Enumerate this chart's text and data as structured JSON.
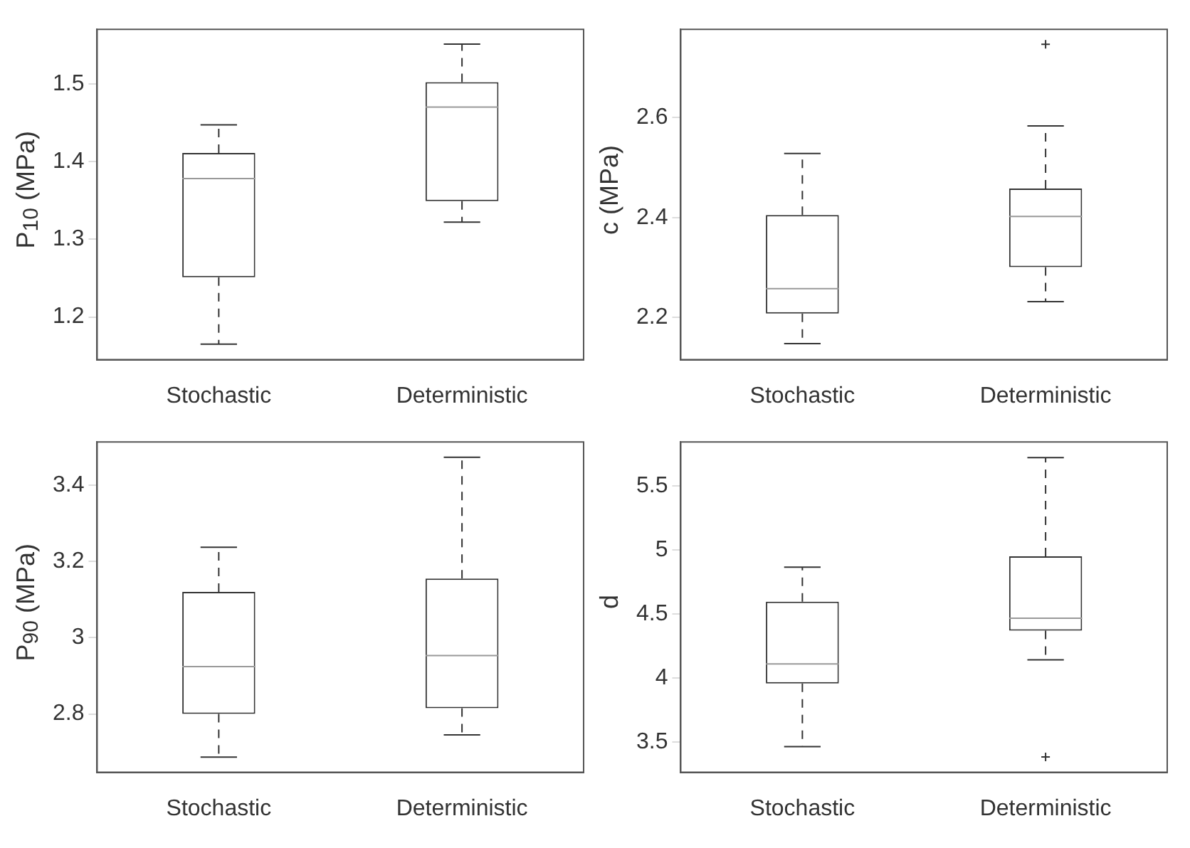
{
  "chart_data": [
    {
      "type": "box",
      "ylabel": "P$_{10}$ (MPa)",
      "categories": [
        "Stochastic",
        "Deterministic"
      ],
      "ylim": [
        1.145,
        1.57
      ],
      "yticks": [
        1.2,
        1.3,
        1.4,
        1.5
      ],
      "boxes": [
        {
          "low": 1.165,
          "q1": 1.251,
          "median": 1.378,
          "q3": 1.411,
          "high": 1.447
        },
        {
          "low": 1.322,
          "q1": 1.349,
          "median": 1.47,
          "q3": 1.502,
          "high": 1.551
        }
      ]
    },
    {
      "type": "box",
      "ylabel": "c (MPa)",
      "categories": [
        "Stochastic",
        "Deterministic"
      ],
      "ylim": [
        2.116,
        2.776
      ],
      "yticks": [
        2.2,
        2.4,
        2.6
      ],
      "boxes": [
        {
          "low": 2.148,
          "q1": 2.208,
          "median": 2.258,
          "q3": 2.405,
          "high": 2.528
        },
        {
          "low": 2.232,
          "q1": 2.301,
          "median": 2.402,
          "q3": 2.458,
          "high": 2.583,
          "outliers": [
            2.746
          ]
        }
      ]
    },
    {
      "type": "box",
      "ylabel": "P$_{90}$ (MPa)",
      "categories": [
        "Stochastic",
        "Deterministic"
      ],
      "ylim": [
        2.647,
        3.513
      ],
      "yticks": [
        2.8,
        3,
        3.2,
        3.4
      ],
      "boxes": [
        {
          "low": 2.687,
          "q1": 2.8,
          "median": 2.924,
          "q3": 3.12,
          "high": 3.237
        },
        {
          "low": 2.745,
          "q1": 2.815,
          "median": 2.953,
          "q3": 3.155,
          "high": 3.473
        }
      ]
    },
    {
      "type": "box",
      "ylabel": "d",
      "categories": [
        "Stochastic",
        "Deterministic"
      ],
      "ylim": [
        3.263,
        5.843
      ],
      "yticks": [
        3.5,
        4,
        4.5,
        5,
        5.5
      ],
      "boxes": [
        {
          "low": 3.464,
          "q1": 3.956,
          "median": 4.11,
          "q3": 4.595,
          "high": 4.865
        },
        {
          "low": 4.142,
          "q1": 4.369,
          "median": 4.467,
          "q3": 4.949,
          "high": 5.72,
          "outliers": [
            3.383
          ]
        }
      ]
    }
  ]
}
